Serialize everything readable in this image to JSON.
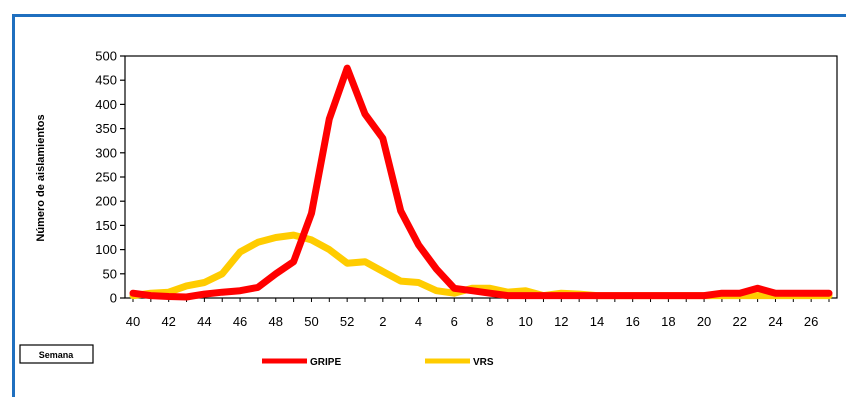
{
  "chart_data": {
    "type": "line",
    "title": "",
    "xlabel": "Semana",
    "ylabel": "Número de aislamientos",
    "ylim": [
      0,
      500
    ],
    "y_ticks": [
      0,
      50,
      100,
      150,
      200,
      250,
      300,
      350,
      400,
      450,
      500
    ],
    "x_tick_labels": [
      "40",
      "42",
      "44",
      "46",
      "48",
      "50",
      "52",
      "2",
      "4",
      "6",
      "8",
      "10",
      "12",
      "14",
      "16",
      "18",
      "20",
      "22",
      "24",
      "26"
    ],
    "weeks": [
      "40",
      "41",
      "42",
      "43",
      "44",
      "45",
      "46",
      "47",
      "48",
      "49",
      "50",
      "51",
      "52",
      "1",
      "2",
      "3",
      "4",
      "5",
      "6",
      "7",
      "8",
      "9",
      "10",
      "11",
      "12",
      "13",
      "14",
      "15",
      "16",
      "17",
      "18",
      "19",
      "20",
      "21",
      "22",
      "23",
      "24",
      "25",
      "26",
      "27"
    ],
    "series": [
      {
        "name": "GRIPE",
        "color": "#ff0000",
        "values": [
          10,
          5,
          3,
          2,
          8,
          12,
          15,
          22,
          50,
          75,
          175,
          370,
          475,
          380,
          330,
          180,
          110,
          60,
          20,
          15,
          10,
          5,
          5,
          5,
          5,
          5,
          5,
          5,
          5,
          5,
          5,
          5,
          5,
          10,
          10,
          20,
          10,
          10,
          10,
          10
        ]
      },
      {
        "name": "VRS",
        "color": "#ffcc00",
        "values": [
          5,
          10,
          12,
          25,
          32,
          50,
          95,
          115,
          125,
          130,
          120,
          100,
          72,
          75,
          55,
          35,
          32,
          15,
          10,
          20,
          20,
          12,
          15,
          5,
          10,
          8,
          5,
          5,
          5,
          5,
          5,
          5,
          5,
          5,
          5,
          5,
          5,
          5,
          5,
          5
        ]
      }
    ],
    "legend_position": "bottom",
    "grid": false
  }
}
